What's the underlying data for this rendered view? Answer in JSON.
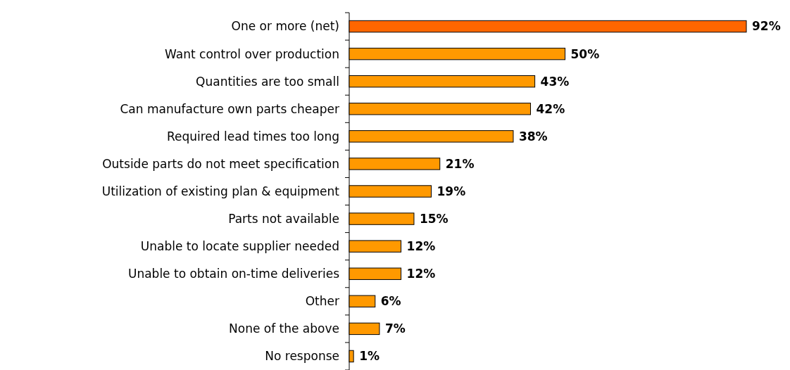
{
  "chart_data": {
    "type": "bar",
    "orientation": "horizontal",
    "categories": [
      "One or more (net)",
      "Want control over production",
      "Quantities are too small",
      "Can manufacture own parts cheaper",
      "Required lead times too long",
      "Outside parts do not meet specification",
      "Utilization of existing plan & equipment",
      "Parts not available",
      "Unable to locate supplier needed",
      "Unable to obtain on-time deliveries",
      "Other",
      "None of the above",
      "No response"
    ],
    "values": [
      92,
      50,
      43,
      42,
      38,
      21,
      19,
      15,
      12,
      12,
      6,
      7,
      1
    ],
    "colors": [
      "#ff6600",
      "#ff9900",
      "#ff9900",
      "#ff9900",
      "#ff9900",
      "#ff9900",
      "#ff9900",
      "#ff9900",
      "#ff9900",
      "#ff9900",
      "#ff9900",
      "#ff9900",
      "#ff9900"
    ],
    "value_labels": [
      "92%",
      "50%",
      "43%",
      "42%",
      "38%",
      "21%",
      "19%",
      "15%",
      "12%",
      "12%",
      "6%",
      "7%",
      "1%"
    ]
  }
}
